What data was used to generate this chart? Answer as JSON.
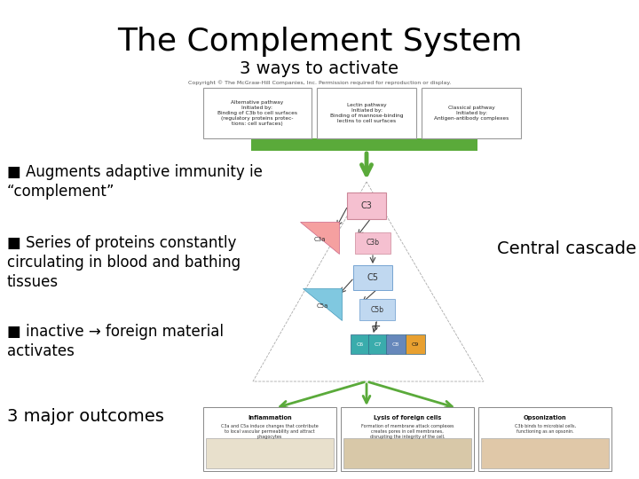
{
  "title": "The Complement System",
  "subtitle": "3 ways to activate",
  "copyright_text": "Copyright © The McGraw-Hill Companies, Inc. Permission required for reproduction or display.",
  "bg_color": "#ffffff",
  "title_color": "#000000",
  "subtitle_color": "#000000",
  "bullet_color": "#000000",
  "title_fontsize": 26,
  "subtitle_fontsize": 14,
  "bullet_fontsize": 12,
  "cascade_fontsize": 14,
  "green_color": "#5aaa3a",
  "box_texts": [
    "Alternative pathway\nInitiated by:\nBinding of C3b to cell surfaces\n(regulatory proteins protec-\ntions: cell surfaces)",
    "Lectin pathway\nInitiated by:\nBinding of mannose-binding\nlectins to cell surfaces",
    "Classical pathway\nInitiated by:\nAntigen-antibody complexes"
  ],
  "bullet_points": [
    "■ Augments adaptive immunity ie\n“complement”",
    "■ Series of proteins constantly\ncirculating in blood and bathing\ntissues",
    "■ inactive → foreign material\nactivates",
    "3 major outcomes"
  ],
  "central_cascade_label": "Central cascade"
}
